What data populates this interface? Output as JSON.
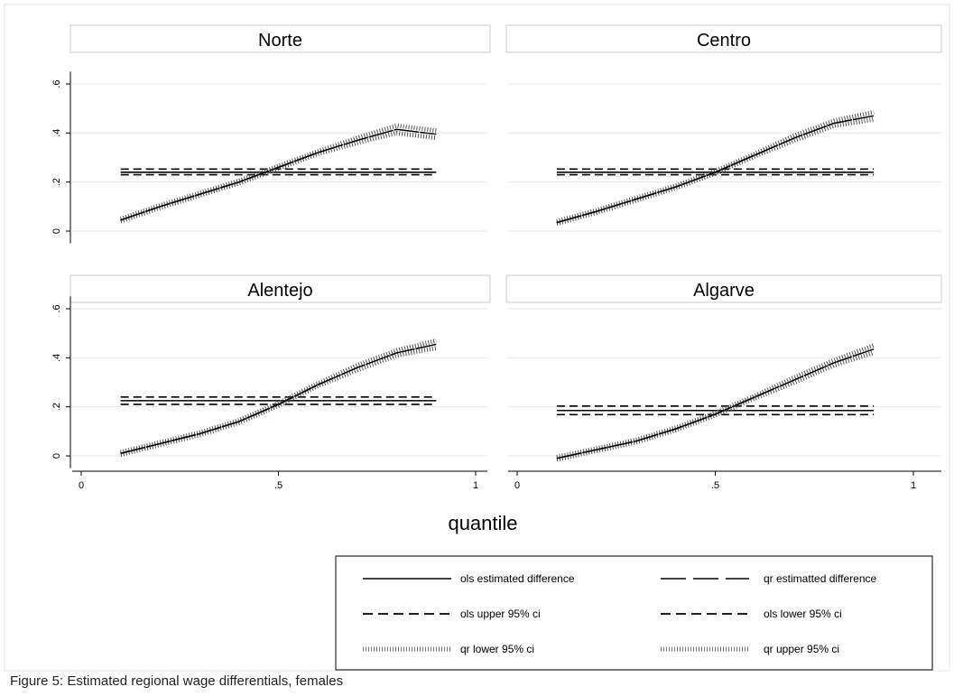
{
  "caption": "Figure 5: Estimated regional wage differentials, females",
  "chart_data": {
    "type": "line",
    "xlabel": "quantile",
    "ylabel": "",
    "xlim": [
      0,
      1
    ],
    "ylim": [
      0,
      0.6
    ],
    "xticks": [
      0,
      0.5,
      1
    ],
    "xtick_labels": [
      "0",
      ".5",
      "1"
    ],
    "yticks": [
      0,
      0.2,
      0.4,
      0.6
    ],
    "ytick_labels": [
      "0",
      ".2",
      ".4",
      ".6"
    ],
    "grid": "horizontal",
    "legend_position": "bottom-right",
    "legend": [
      "ols estimated difference",
      "qr estimatted difference",
      "ols upper 95% ci",
      "ols lower 95% ci",
      "qr lower 95% ci",
      "qr upper 95% ci"
    ],
    "panels": [
      {
        "title": "Norte",
        "ols_est": 0.24,
        "ols_upper": 0.253,
        "ols_lower": 0.23,
        "qr_x": [
          0.1,
          0.2,
          0.3,
          0.4,
          0.5,
          0.6,
          0.7,
          0.8,
          0.9
        ],
        "qr_est": [
          0.045,
          0.1,
          0.15,
          0.2,
          0.26,
          0.32,
          0.37,
          0.415,
          0.395
        ],
        "qr_lower": [
          0.04,
          0.095,
          0.145,
          0.195,
          0.255,
          0.315,
          0.36,
          0.4,
          0.38
        ],
        "qr_upper": [
          0.05,
          0.105,
          0.155,
          0.205,
          0.265,
          0.325,
          0.38,
          0.43,
          0.41
        ]
      },
      {
        "title": "Centro",
        "ols_est": 0.24,
        "ols_upper": 0.253,
        "ols_lower": 0.23,
        "qr_x": [
          0.1,
          0.2,
          0.3,
          0.4,
          0.5,
          0.6,
          0.7,
          0.8,
          0.9
        ],
        "qr_est": [
          0.035,
          0.08,
          0.13,
          0.18,
          0.24,
          0.31,
          0.38,
          0.44,
          0.47
        ],
        "qr_lower": [
          0.03,
          0.075,
          0.125,
          0.175,
          0.235,
          0.305,
          0.37,
          0.43,
          0.455
        ],
        "qr_upper": [
          0.04,
          0.085,
          0.135,
          0.185,
          0.245,
          0.315,
          0.39,
          0.45,
          0.485
        ]
      },
      {
        "title": "Alentejo",
        "ols_est": 0.225,
        "ols_upper": 0.24,
        "ols_lower": 0.21,
        "qr_x": [
          0.1,
          0.2,
          0.3,
          0.4,
          0.5,
          0.6,
          0.7,
          0.8,
          0.9
        ],
        "qr_est": [
          0.01,
          0.05,
          0.09,
          0.14,
          0.21,
          0.29,
          0.36,
          0.42,
          0.455
        ],
        "qr_lower": [
          0.005,
          0.045,
          0.085,
          0.135,
          0.205,
          0.285,
          0.35,
          0.41,
          0.44
        ],
        "qr_upper": [
          0.015,
          0.055,
          0.095,
          0.145,
          0.215,
          0.295,
          0.37,
          0.43,
          0.47
        ]
      },
      {
        "title": "Algarve",
        "ols_est": 0.185,
        "ols_upper": 0.203,
        "ols_lower": 0.168,
        "qr_x": [
          0.1,
          0.2,
          0.3,
          0.4,
          0.5,
          0.6,
          0.7,
          0.8,
          0.9
        ],
        "qr_est": [
          -0.01,
          0.025,
          0.06,
          0.11,
          0.17,
          0.24,
          0.31,
          0.38,
          0.435
        ],
        "qr_lower": [
          -0.015,
          0.02,
          0.055,
          0.105,
          0.165,
          0.235,
          0.3,
          0.37,
          0.42
        ],
        "qr_upper": [
          -0.005,
          0.03,
          0.065,
          0.115,
          0.175,
          0.245,
          0.32,
          0.39,
          0.45
        ]
      }
    ]
  }
}
